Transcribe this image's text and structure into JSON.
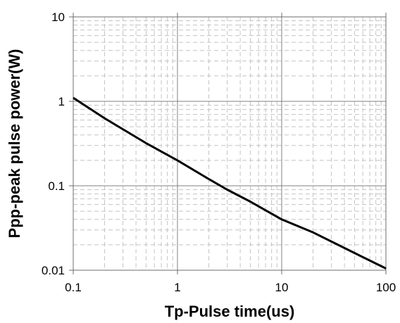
{
  "chart_data": {
    "type": "line",
    "title": "",
    "xlabel": "Tp-Pulse time(us)",
    "ylabel": "Ppp-peak pulse power(W)",
    "x_scale": "log",
    "y_scale": "log",
    "xlim": [
      0.1,
      100
    ],
    "ylim": [
      0.01,
      10
    ],
    "x_ticks": [
      "0.1",
      "1",
      "10",
      "100"
    ],
    "y_ticks": [
      "10",
      "1",
      "0.1",
      "0.01"
    ],
    "grid": true,
    "legend": "none",
    "series": [
      {
        "color": "#000000",
        "x": [
          0.1,
          0.2,
          0.5,
          1,
          2,
          3,
          5,
          10,
          20,
          50,
          100
        ],
        "y": [
          1.1,
          0.63,
          0.32,
          0.2,
          0.12,
          0.09,
          0.065,
          0.04,
          0.028,
          0.016,
          0.0105
        ]
      }
    ]
  }
}
